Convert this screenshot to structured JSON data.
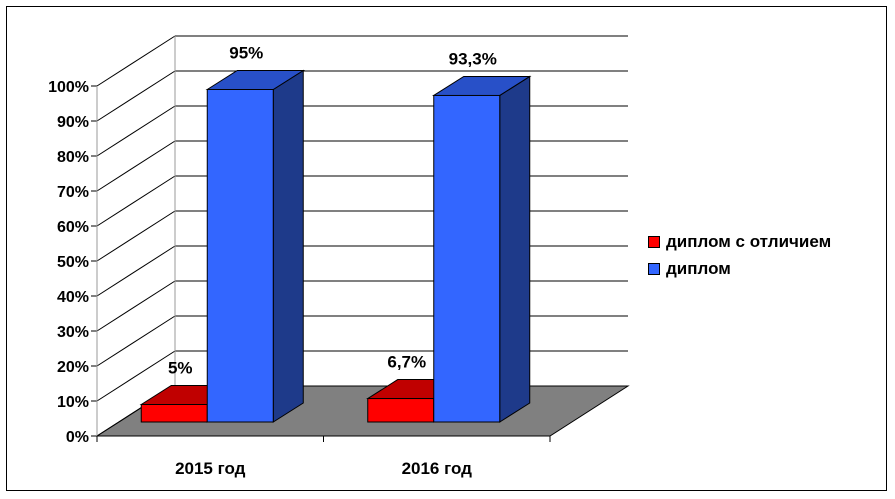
{
  "chart_data": {
    "type": "bar",
    "categories": [
      "2015 год",
      "2016 год"
    ],
    "series": [
      {
        "name": "диплом с отличием",
        "values": [
          5,
          6.7
        ],
        "labels": [
          "5%",
          "6,7%"
        ],
        "color": "#ff0000",
        "top_color": "#c00000",
        "side_color": "#900000"
      },
      {
        "name": "диплом",
        "values": [
          95,
          93.3
        ],
        "labels": [
          "95%",
          "93,3%"
        ],
        "color": "#3366ff",
        "top_color": "#2850c8",
        "side_color": "#1e3a8a"
      }
    ],
    "y_ticks": [
      "0%",
      "10%",
      "20%",
      "30%",
      "40%",
      "50%",
      "60%",
      "70%",
      "80%",
      "90%",
      "100%"
    ],
    "ylim": [
      0,
      100
    ],
    "grid": true,
    "floor_color": "#808080",
    "legend_position": "right",
    "title": "",
    "xlabel": "",
    "ylabel": ""
  }
}
